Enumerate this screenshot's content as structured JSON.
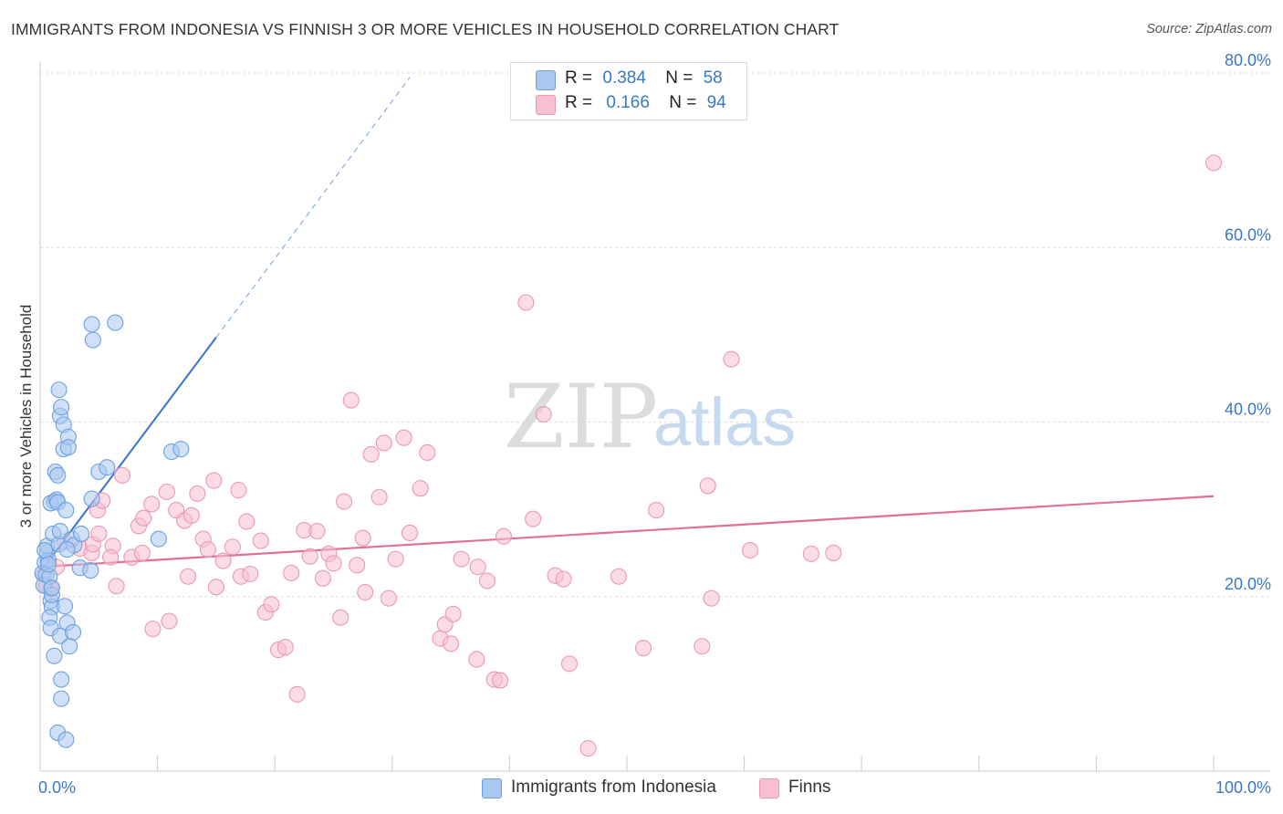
{
  "title": "IMMIGRANTS FROM INDONESIA VS FINNISH 3 OR MORE VEHICLES IN HOUSEHOLD CORRELATION CHART",
  "source": "Source: ZipAtlas.com",
  "watermark": {
    "zip": "ZIP",
    "atlas": "atlas"
  },
  "colors": {
    "blue_fill": "#a9c8f0",
    "blue_stroke": "#6e9fe0",
    "blue_line": "#3573d0",
    "pink_fill": "#f7c0d0",
    "pink_stroke": "#eb98b2",
    "pink_line": "#e0709a",
    "grid": "#dddddd",
    "axis_text": "#3b78c4"
  },
  "legend_top": [
    {
      "r_label": "R =",
      "r_value": "0.384",
      "n_label": "N =",
      "n_value": "58",
      "series": "blue"
    },
    {
      "r_label": "R =",
      "r_value": "0.166",
      "n_label": "N =",
      "n_value": "94",
      "series": "pink"
    }
  ],
  "legend_bottom": [
    {
      "label": "Immigrants from Indonesia",
      "series": "blue"
    },
    {
      "label": "Finns",
      "series": "pink"
    }
  ],
  "chart_data": {
    "type": "scatter",
    "title": "IMMIGRANTS FROM INDONESIA VS FINNISH 3 OR MORE VEHICLES IN HOUSEHOLD CORRELATION CHART",
    "xlabel": "",
    "ylabel": "3 or more Vehicles in Household",
    "xlim": [
      0,
      100
    ],
    "ylim": [
      0,
      80
    ],
    "x_tick_labels": [
      "0.0%",
      "100.0%"
    ],
    "y_ticks": [
      20,
      40,
      60,
      80
    ],
    "y_tick_labels": [
      "20.0%",
      "40.0%",
      "60.0%",
      "80.0%"
    ],
    "grid": true,
    "legend_position": "top-center",
    "series": [
      {
        "name": "Immigrants from Indonesia",
        "color": "blue",
        "R": 0.384,
        "N": 58,
        "trend": {
          "x0": 0,
          "y0": 22.8,
          "x1": 15,
          "y1": 49.7,
          "dashed_to_x": 31.5,
          "dashed_to_y": 79.5
        },
        "points": [
          [
            0.2,
            22.7
          ],
          [
            0.3,
            21.3
          ],
          [
            0.4,
            23.9
          ],
          [
            0.5,
            22.5
          ],
          [
            0.6,
            25.1
          ],
          [
            0.7,
            24.2
          ],
          [
            0.8,
            22.3
          ],
          [
            0.6,
            25.8
          ],
          [
            0.9,
            19.5
          ],
          [
            1.0,
            18.8
          ],
          [
            0.8,
            17.6
          ],
          [
            0.9,
            16.4
          ],
          [
            1.0,
            20.2
          ],
          [
            1.1,
            27.2
          ],
          [
            1.2,
            30.9
          ],
          [
            0.9,
            30.7
          ],
          [
            1.4,
            31.1
          ],
          [
            1.5,
            30.8
          ],
          [
            1.6,
            26.0
          ],
          [
            1.7,
            27.5
          ],
          [
            1.3,
            34.3
          ],
          [
            1.5,
            33.9
          ],
          [
            1.6,
            43.7
          ],
          [
            1.7,
            40.7
          ],
          [
            1.8,
            41.7
          ],
          [
            2.0,
            39.7
          ],
          [
            2.0,
            36.9
          ],
          [
            2.4,
            38.3
          ],
          [
            2.4,
            37.1
          ],
          [
            2.2,
            29.9
          ],
          [
            2.1,
            18.9
          ],
          [
            1.7,
            15.5
          ],
          [
            2.3,
            17.0
          ],
          [
            2.8,
            15.9
          ],
          [
            2.7,
            26.6
          ],
          [
            2.9,
            25.9
          ],
          [
            3.5,
            27.2
          ],
          [
            3.4,
            23.3
          ],
          [
            4.3,
            23.0
          ],
          [
            4.4,
            31.2
          ],
          [
            5.0,
            34.3
          ],
          [
            5.7,
            34.8
          ],
          [
            1.2,
            13.2
          ],
          [
            2.5,
            14.3
          ],
          [
            1.8,
            10.5
          ],
          [
            1.8,
            8.3
          ],
          [
            1.5,
            4.4
          ],
          [
            2.2,
            3.6
          ],
          [
            4.4,
            51.2
          ],
          [
            4.5,
            49.4
          ],
          [
            6.4,
            51.4
          ],
          [
            10.1,
            26.6
          ],
          [
            11.2,
            36.6
          ],
          [
            12.0,
            36.9
          ],
          [
            0.4,
            25.3
          ],
          [
            0.7,
            23.7
          ],
          [
            2.3,
            25.4
          ],
          [
            1.0,
            21.0
          ]
        ]
      },
      {
        "name": "Finns",
        "color": "pink",
        "R": 0.166,
        "N": 94,
        "trend": {
          "x0": 0,
          "y0": 23.4,
          "x1": 100,
          "y1": 31.5
        },
        "points": [
          [
            0.3,
            22.5
          ],
          [
            0.5,
            21.2
          ],
          [
            0.9,
            20.9
          ],
          [
            1.4,
            23.4
          ],
          [
            2.1,
            26.3
          ],
          [
            3.4,
            25.5
          ],
          [
            4.4,
            25.0
          ],
          [
            4.5,
            26.0
          ],
          [
            4.9,
            29.9
          ],
          [
            5.3,
            31.0
          ],
          [
            5.0,
            27.2
          ],
          [
            6.2,
            25.8
          ],
          [
            6.0,
            24.5
          ],
          [
            6.5,
            21.2
          ],
          [
            7.8,
            24.5
          ],
          [
            7.0,
            33.9
          ],
          [
            8.4,
            28.1
          ],
          [
            8.8,
            29.0
          ],
          [
            8.7,
            25.0
          ],
          [
            9.5,
            30.6
          ],
          [
            10.8,
            32.0
          ],
          [
            9.6,
            16.3
          ],
          [
            11.0,
            17.2
          ],
          [
            11.6,
            29.9
          ],
          [
            12.3,
            28.7
          ],
          [
            12.6,
            22.3
          ],
          [
            12.9,
            29.3
          ],
          [
            13.4,
            31.8
          ],
          [
            13.9,
            26.6
          ],
          [
            14.3,
            25.4
          ],
          [
            14.8,
            33.3
          ],
          [
            15.0,
            21.1
          ],
          [
            15.6,
            24.1
          ],
          [
            16.4,
            25.7
          ],
          [
            16.9,
            32.2
          ],
          [
            17.1,
            22.3
          ],
          [
            17.6,
            28.6
          ],
          [
            17.9,
            22.6
          ],
          [
            18.8,
            26.4
          ],
          [
            19.2,
            18.2
          ],
          [
            19.7,
            19.1
          ],
          [
            20.3,
            13.9
          ],
          [
            20.9,
            14.2
          ],
          [
            21.4,
            22.7
          ],
          [
            21.9,
            8.8
          ],
          [
            22.5,
            27.6
          ],
          [
            23.0,
            24.6
          ],
          [
            23.6,
            27.5
          ],
          [
            24.1,
            22.1
          ],
          [
            24.6,
            24.9
          ],
          [
            25.0,
            23.8
          ],
          [
            25.6,
            17.6
          ],
          [
            25.9,
            30.9
          ],
          [
            26.5,
            42.5
          ],
          [
            27.0,
            23.6
          ],
          [
            27.5,
            26.7
          ],
          [
            27.7,
            20.5
          ],
          [
            28.2,
            36.3
          ],
          [
            28.9,
            31.4
          ],
          [
            29.3,
            37.6
          ],
          [
            29.7,
            19.8
          ],
          [
            30.3,
            24.3
          ],
          [
            31.0,
            38.2
          ],
          [
            31.5,
            27.3
          ],
          [
            32.4,
            32.4
          ],
          [
            33.0,
            36.5
          ],
          [
            34.1,
            15.2
          ],
          [
            34.5,
            16.8
          ],
          [
            35.0,
            14.6
          ],
          [
            35.2,
            18.0
          ],
          [
            35.9,
            24.3
          ],
          [
            37.2,
            12.8
          ],
          [
            37.3,
            23.4
          ],
          [
            38.1,
            21.8
          ],
          [
            38.7,
            10.5
          ],
          [
            39.2,
            10.4
          ],
          [
            39.5,
            26.9
          ],
          [
            41.4,
            53.7
          ],
          [
            42.0,
            28.9
          ],
          [
            42.9,
            40.9
          ],
          [
            43.9,
            22.4
          ],
          [
            44.6,
            22.0
          ],
          [
            45.1,
            12.3
          ],
          [
            46.7,
            2.6
          ],
          [
            49.3,
            22.3
          ],
          [
            51.4,
            14.1
          ],
          [
            52.5,
            29.9
          ],
          [
            56.4,
            14.3
          ],
          [
            56.9,
            32.7
          ],
          [
            57.2,
            19.8
          ],
          [
            58.9,
            47.2
          ],
          [
            60.5,
            25.3
          ],
          [
            65.7,
            24.9
          ],
          [
            67.6,
            25.0
          ],
          [
            100.0,
            69.7
          ]
        ]
      }
    ]
  }
}
